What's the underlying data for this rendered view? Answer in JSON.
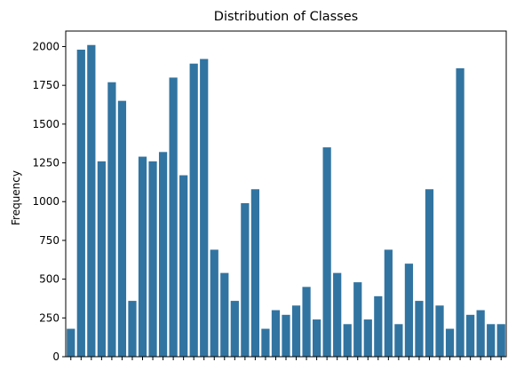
{
  "chart_data": {
    "type": "bar",
    "title": "Distribution of Classes",
    "xlabel": "",
    "ylabel": "Frequency",
    "ylim": [
      0,
      2100
    ],
    "yticks": [
      0,
      250,
      500,
      750,
      1000,
      1250,
      1500,
      1750,
      2000
    ],
    "bar_color": "#3274a1",
    "values": [
      180,
      1980,
      2010,
      1260,
      1770,
      1650,
      360,
      1290,
      1260,
      1320,
      1800,
      1170,
      1890,
      1920,
      690,
      540,
      360,
      990,
      1080,
      180,
      300,
      270,
      330,
      450,
      240,
      1350,
      540,
      210,
      480,
      240,
      390,
      690,
      210,
      600,
      360,
      1080,
      330,
      180,
      1860,
      270,
      300,
      210,
      210
    ]
  }
}
